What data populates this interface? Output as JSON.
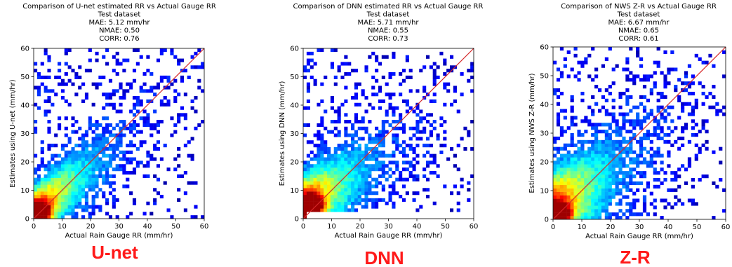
{
  "chart_data": [
    {
      "type": "heatmap",
      "key": "unet",
      "title_lines": [
        "Comparison of U-net estimated RR vs Actual Gauge RR",
        "Test dataset",
        "MAE: 5.12 mm/hr",
        "NMAE: 0.50",
        "CORR: 0.76"
      ],
      "xlabel": "Actual Rain Gauge RR (mm/hr)",
      "ylabel": "Estimates using U-net (mm/hr)",
      "xlim": [
        0,
        60
      ],
      "ylim": [
        0,
        60
      ],
      "xticks": [
        0,
        10,
        20,
        30,
        40,
        50,
        60
      ],
      "yticks": [
        0,
        10,
        20,
        30,
        40,
        50,
        60
      ],
      "reference_line": "y = x",
      "reference_color": "#d62728",
      "big_label": "U-net",
      "model": {
        "slope": 0.8,
        "offset": 1.5,
        "spread": 6,
        "yfloor": 0,
        "core": [
          2,
          2
        ]
      }
    },
    {
      "type": "heatmap",
      "key": "dnn",
      "title_lines": [
        "Comparison of DNN estimated RR vs Actual Gauge RR",
        "Test dataset",
        "MAE: 5.71 mm/hr",
        "NMAE: 0.55",
        "CORR: 0.73"
      ],
      "xlabel": "Actual Rain Gauge RR (mm/hr)",
      "ylabel": "Estimates using DNN (mm/hr)",
      "xlim": [
        0,
        60
      ],
      "ylim": [
        0,
        60
      ],
      "xticks": [
        0,
        10,
        20,
        30,
        40,
        50,
        60
      ],
      "yticks": [
        0,
        10,
        20,
        30,
        40,
        50,
        60
      ],
      "reference_line": "y = x",
      "reference_color": "#d62728",
      "big_label": "DNN",
      "model": {
        "slope": 0.6,
        "offset": 4,
        "spread": 7,
        "yfloor": 3,
        "core": [
          3,
          5
        ]
      }
    },
    {
      "type": "heatmap",
      "key": "zr",
      "title_lines": [
        "Comparison of NWS Z-R vs Actual Gauge RR",
        "Test dataset",
        "MAE: 6.67 mm/hr",
        "NMAE: 0.65",
        "CORR: 0.61"
      ],
      "xlabel": "Actual Rain Gauge RR (mm/hr)",
      "ylabel": "Estimates using NWS Z-R (mm/hr)",
      "xlim": [
        0,
        60
      ],
      "ylim": [
        0,
        60
      ],
      "xticks": [
        0,
        10,
        20,
        30,
        40,
        50,
        60
      ],
      "yticks": [
        0,
        10,
        20,
        30,
        40,
        50,
        60
      ],
      "reference_line": "y = x",
      "reference_color": "#d62728",
      "big_label": "Z-R",
      "model": {
        "slope": 0.7,
        "offset": 2,
        "spread": 9,
        "yfloor": 0,
        "core": [
          2,
          2
        ]
      }
    }
  ],
  "colormap": "jet",
  "colors": {
    "label_red": "#ff1a1a",
    "diagonal": "#d62728"
  }
}
